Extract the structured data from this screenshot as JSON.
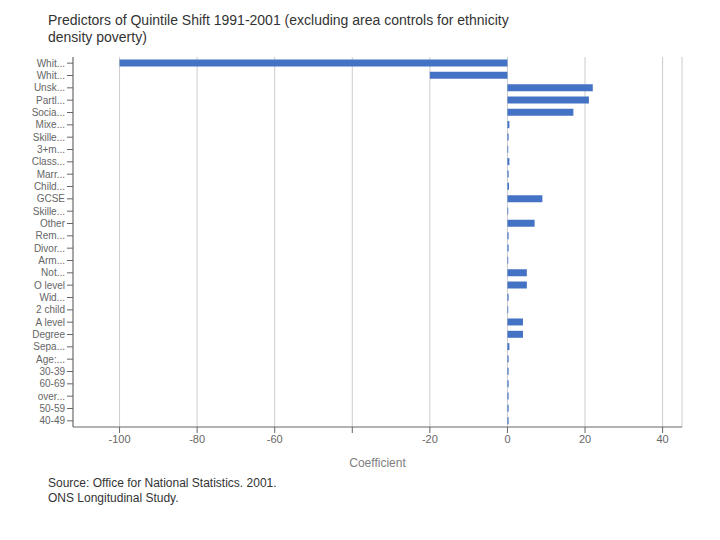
{
  "chart_data": {
    "type": "bar",
    "orientation": "horizontal",
    "title": "Predictors of Quintile Shift 1991-2001 (excluding  area controls for ethnicity\ndensity poverty)",
    "xlabel": "Coefficient",
    "annotation": "Source: Office for National Statistics. 2001.\nONS Longitudinal Study.",
    "categories": [
      "Whit...",
      "Whit...",
      "Unsk...",
      "Partl...",
      "Socia...",
      "Mixe...",
      "Skille...",
      "3+m...",
      "Class...",
      "Marr...",
      "Child...",
      "GCSE",
      "Skille...",
      "Other",
      "Rem...",
      "Divor...",
      "Arm...",
      "Not...",
      "O level",
      "Wid...",
      "2 child",
      "A level",
      "Degree",
      "Sepa...",
      "Age:...",
      "30-39",
      "60-69",
      "over...",
      "50-59",
      "40-49"
    ],
    "values": [
      -100,
      -20,
      22,
      21,
      17,
      0.5,
      0.3,
      0.2,
      0.5,
      0.3,
      0.4,
      9,
      0.2,
      7,
      0.3,
      0.3,
      0.2,
      5,
      5,
      0.3,
      0.2,
      4,
      4,
      0.5,
      0.3,
      0.3,
      0.3,
      0.3,
      0.3,
      0.3
    ],
    "color": "#4472C4",
    "xlim": [
      -112,
      45
    ],
    "xticks": [
      -100,
      -80,
      -60,
      {
        "value": -40,
        "label": ""
      },
      -20,
      0,
      20,
      40
    ],
    "grid": true
  }
}
